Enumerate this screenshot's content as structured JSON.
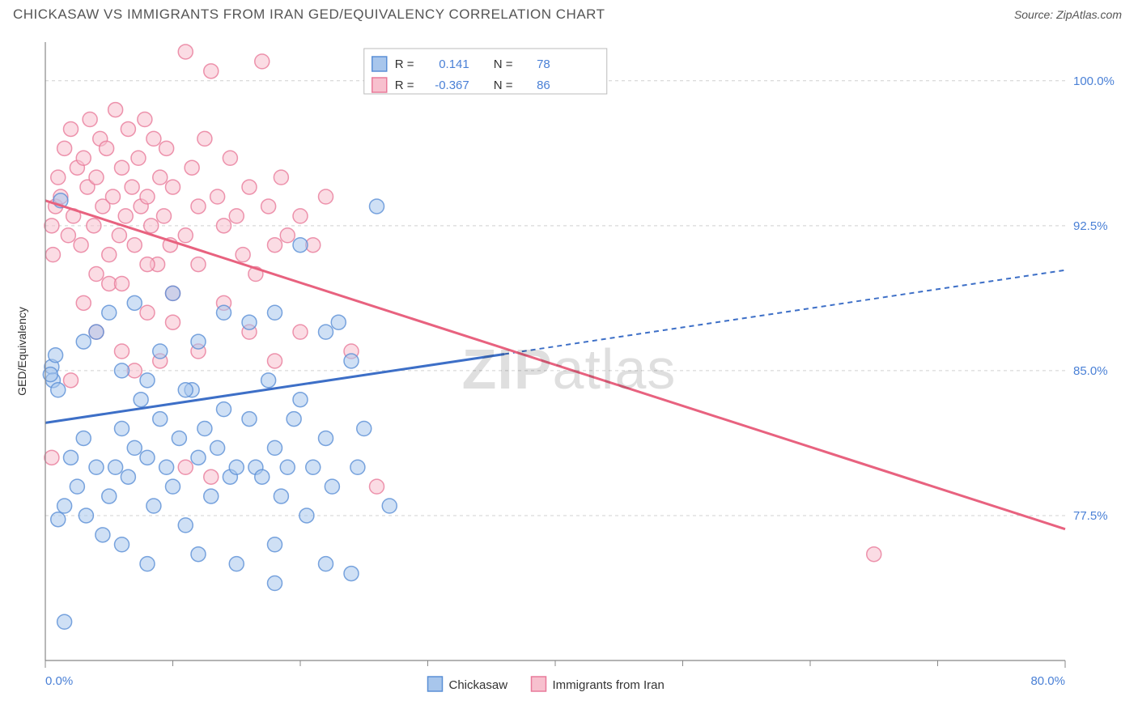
{
  "title": "CHICKASAW VS IMMIGRANTS FROM IRAN GED/EQUIVALENCY CORRELATION CHART",
  "source": "Source: ZipAtlas.com",
  "watermark_a": "ZIP",
  "watermark_b": "atlas",
  "chart": {
    "type": "scatter-with-regression",
    "ylabel": "GED/Equivalency",
    "xlim": [
      0,
      80
    ],
    "ylim": [
      70,
      102
    ],
    "xticks": [
      0,
      80
    ],
    "xtick_labels": [
      "0.0%",
      "80.0%"
    ],
    "xtick_minor": [
      10,
      20,
      30,
      40,
      50,
      60,
      70
    ],
    "yticks": [
      77.5,
      85.0,
      92.5,
      100.0
    ],
    "ytick_labels": [
      "77.5%",
      "85.0%",
      "92.5%",
      "100.0%"
    ],
    "background_color": "#ffffff",
    "grid_color": "#d0d0d0",
    "axis_color": "#888888",
    "tick_label_color": "#4a80d6",
    "marker_radius": 9,
    "marker_opacity": 0.55,
    "series": [
      {
        "name": "Chickasaw",
        "color_fill": "#a8c6ec",
        "color_stroke": "#5a8fd6",
        "R": "0.141",
        "N": "78",
        "line": {
          "x1": 0,
          "y1": 82.3,
          "x2": 80,
          "y2": 90.2,
          "solid_until_x": 36,
          "color": "#3d6fc7",
          "width": 3
        },
        "points": [
          [
            0.5,
            85.2
          ],
          [
            0.6,
            84.5
          ],
          [
            0.8,
            85.8
          ],
          [
            0.4,
            84.8
          ],
          [
            1,
            84.0
          ],
          [
            1.2,
            93.8
          ],
          [
            1,
            77.3
          ],
          [
            1.5,
            78.0
          ],
          [
            2,
            80.5
          ],
          [
            2.5,
            79.0
          ],
          [
            3,
            81.5
          ],
          [
            3.2,
            77.5
          ],
          [
            4,
            80.0
          ],
          [
            4.5,
            76.5
          ],
          [
            5,
            78.5
          ],
          [
            5.5,
            80.0
          ],
          [
            6,
            82.0
          ],
          [
            6.5,
            79.5
          ],
          [
            7,
            81.0
          ],
          [
            7.5,
            83.5
          ],
          [
            8,
            80.5
          ],
          [
            8.5,
            78.0
          ],
          [
            9,
            82.5
          ],
          [
            9.5,
            80.0
          ],
          [
            10,
            79.0
          ],
          [
            10.5,
            81.5
          ],
          [
            11,
            77.0
          ],
          [
            11.5,
            84.0
          ],
          [
            12,
            80.5
          ],
          [
            12.5,
            82.0
          ],
          [
            13,
            78.5
          ],
          [
            13.5,
            81.0
          ],
          [
            14,
            83.0
          ],
          [
            14.5,
            79.5
          ],
          [
            15,
            80.0
          ],
          [
            1.5,
            72.0
          ],
          [
            16,
            82.5
          ],
          [
            16.5,
            80.0
          ],
          [
            17,
            79.5
          ],
          [
            17.5,
            84.5
          ],
          [
            18,
            81.0
          ],
          [
            18.5,
            78.5
          ],
          [
            19,
            80.0
          ],
          [
            19.5,
            82.5
          ],
          [
            20,
            83.5
          ],
          [
            20.5,
            77.5
          ],
          [
            21,
            80.0
          ],
          [
            6,
            76.0
          ],
          [
            22,
            81.5
          ],
          [
            22.5,
            79.0
          ],
          [
            8,
            75.0
          ],
          [
            12,
            75.5
          ],
          [
            15,
            75.0
          ],
          [
            18,
            76.0
          ],
          [
            23,
            87.5
          ],
          [
            24,
            74.5
          ],
          [
            24.5,
            80.0
          ],
          [
            25,
            82.0
          ],
          [
            26,
            93.5
          ],
          [
            27,
            78.0
          ],
          [
            3,
            86.5
          ],
          [
            4,
            87.0
          ],
          [
            5,
            88.0
          ],
          [
            6,
            85.0
          ],
          [
            7,
            88.5
          ],
          [
            8,
            84.5
          ],
          [
            9,
            86.0
          ],
          [
            10,
            89.0
          ],
          [
            11,
            84.0
          ],
          [
            12,
            86.5
          ],
          [
            14,
            88.0
          ],
          [
            16,
            87.5
          ],
          [
            18,
            88.0
          ],
          [
            20,
            91.5
          ],
          [
            22,
            87.0
          ],
          [
            24,
            85.5
          ],
          [
            18,
            74.0
          ],
          [
            22,
            75.0
          ]
        ]
      },
      {
        "name": "Immigrants from Iran",
        "color_fill": "#f7c0ce",
        "color_stroke": "#e87a9a",
        "R": "-0.367",
        "N": "86",
        "line": {
          "x1": 0,
          "y1": 93.8,
          "x2": 80,
          "y2": 76.8,
          "solid_until_x": 80,
          "color": "#e8627f",
          "width": 3
        },
        "points": [
          [
            0.5,
            92.5
          ],
          [
            0.6,
            91.0
          ],
          [
            0.8,
            93.5
          ],
          [
            1,
            95.0
          ],
          [
            1.2,
            94.0
          ],
          [
            1.5,
            96.5
          ],
          [
            1.8,
            92.0
          ],
          [
            2,
            97.5
          ],
          [
            2.2,
            93.0
          ],
          [
            2.5,
            95.5
          ],
          [
            2.8,
            91.5
          ],
          [
            3,
            96.0
          ],
          [
            3.3,
            94.5
          ],
          [
            3.5,
            98.0
          ],
          [
            3.8,
            92.5
          ],
          [
            4,
            95.0
          ],
          [
            4.3,
            97.0
          ],
          [
            4.5,
            93.5
          ],
          [
            4.8,
            96.5
          ],
          [
            5,
            91.0
          ],
          [
            5.3,
            94.0
          ],
          [
            5.5,
            98.5
          ],
          [
            5.8,
            92.0
          ],
          [
            6,
            95.5
          ],
          [
            6.3,
            93.0
          ],
          [
            6.5,
            97.5
          ],
          [
            6.8,
            94.5
          ],
          [
            7,
            91.5
          ],
          [
            7.3,
            96.0
          ],
          [
            7.5,
            93.5
          ],
          [
            7.8,
            98.0
          ],
          [
            8,
            94.0
          ],
          [
            8.3,
            92.5
          ],
          [
            8.5,
            97.0
          ],
          [
            8.8,
            90.5
          ],
          [
            9,
            95.0
          ],
          [
            9.3,
            93.0
          ],
          [
            9.5,
            96.5
          ],
          [
            9.8,
            91.5
          ],
          [
            10,
            94.5
          ],
          [
            11,
            101.5
          ],
          [
            12,
            90.5
          ],
          [
            11,
            92.0
          ],
          [
            11.5,
            95.5
          ],
          [
            12,
            93.5
          ],
          [
            12.5,
            97.0
          ],
          [
            13,
            100.5
          ],
          [
            13.5,
            94.0
          ],
          [
            14,
            92.5
          ],
          [
            14.5,
            96.0
          ],
          [
            15,
            93.0
          ],
          [
            15.5,
            91.0
          ],
          [
            16,
            94.5
          ],
          [
            16.5,
            90.0
          ],
          [
            17,
            101.0
          ],
          [
            17.5,
            93.5
          ],
          [
            18,
            91.5
          ],
          [
            18.5,
            95.0
          ],
          [
            19,
            92.0
          ],
          [
            20,
            93.0
          ],
          [
            21,
            91.5
          ],
          [
            22,
            94.0
          ],
          [
            3,
            88.5
          ],
          [
            4,
            87.0
          ],
          [
            5,
            89.5
          ],
          [
            6,
            86.0
          ],
          [
            7,
            85.0
          ],
          [
            8,
            88.0
          ],
          [
            9,
            85.5
          ],
          [
            10,
            87.5
          ],
          [
            12,
            86.0
          ],
          [
            14,
            88.5
          ],
          [
            16,
            87.0
          ],
          [
            18,
            85.5
          ],
          [
            20,
            87.0
          ],
          [
            11,
            80.0
          ],
          [
            13,
            79.5
          ],
          [
            2,
            84.5
          ],
          [
            4,
            90.0
          ],
          [
            6,
            89.5
          ],
          [
            8,
            90.5
          ],
          [
            10,
            89.0
          ],
          [
            24,
            86.0
          ],
          [
            26,
            79.0
          ],
          [
            65,
            75.5
          ],
          [
            0.5,
            80.5
          ]
        ]
      }
    ],
    "top_legend": {
      "R_label": "R =",
      "N_label": "N ="
    },
    "bottom_legend": {
      "items": [
        "Chickasaw",
        "Immigrants from Iran"
      ]
    }
  }
}
